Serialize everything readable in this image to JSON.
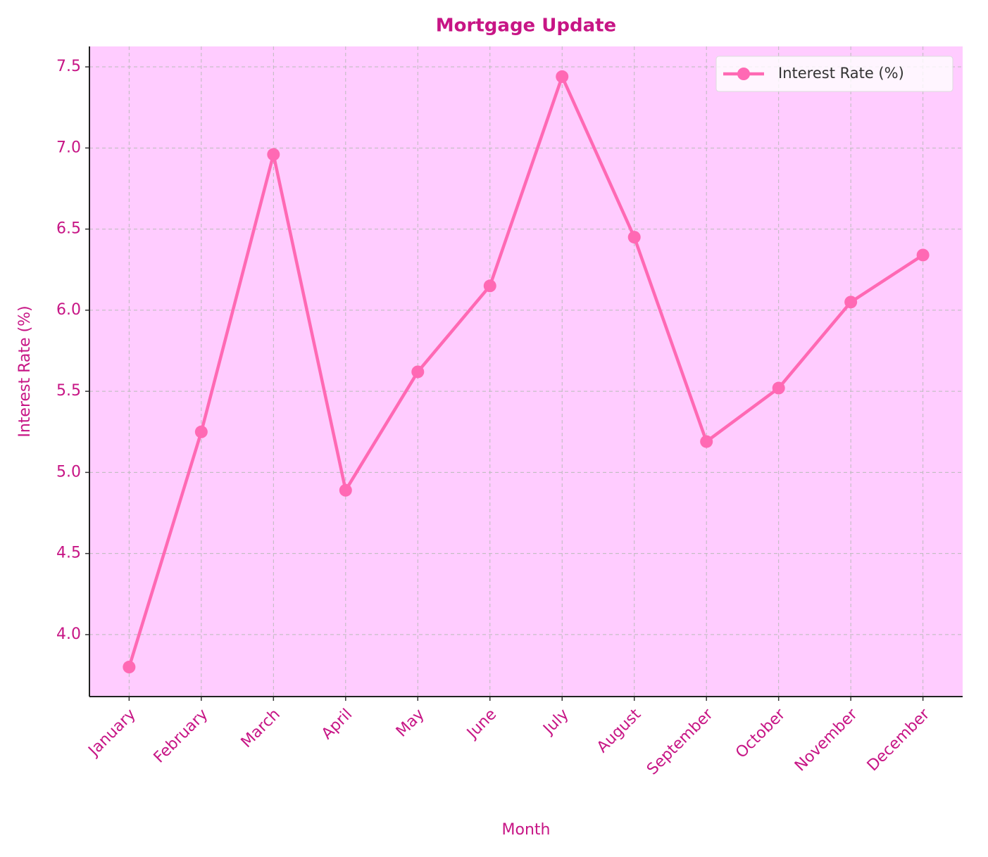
{
  "chart_data": {
    "type": "line",
    "title": "Mortgage Update",
    "x_label": "Month",
    "y_label": "Interest Rate (%)",
    "categories": [
      "January",
      "February",
      "March",
      "April",
      "May",
      "June",
      "July",
      "August",
      "September",
      "October",
      "November",
      "December"
    ],
    "series": [
      {
        "name": "Interest Rate (%)",
        "color": "#ff69b4",
        "values": [
          3.8,
          5.25,
          6.96,
          4.89,
          5.62,
          6.15,
          7.44,
          6.45,
          5.19,
          5.52,
          6.05,
          6.34
        ]
      }
    ],
    "ylim": [
      3.618,
      7.626
    ],
    "yticks": [
      {
        "value": 4,
        "label": "4.0"
      },
      4.5,
      {
        "value": 5,
        "label": "5.0"
      },
      5.5,
      {
        "value": 6,
        "label": "6.0"
      },
      6.5,
      {
        "value": 7,
        "label": "7.0"
      },
      7.5
    ],
    "grid": true,
    "legend": "upper right",
    "background": "#ffccff"
  }
}
